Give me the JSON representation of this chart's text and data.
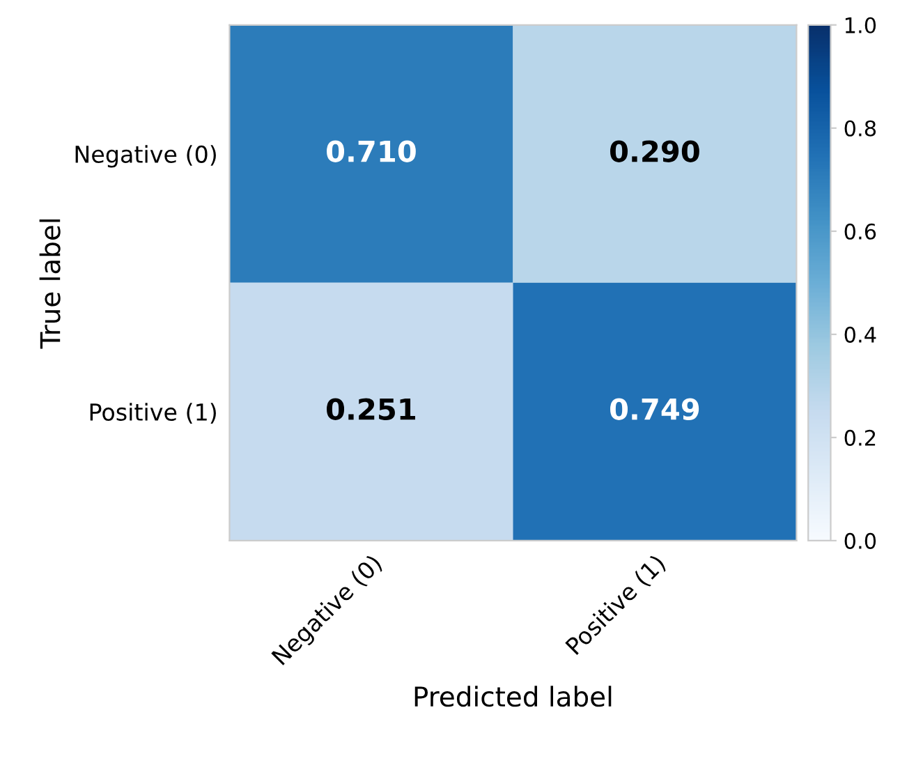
{
  "chart_data": {
    "type": "heatmap",
    "xlabel": "Predicted label",
    "ylabel": "True label",
    "categories": [
      "Negative (0)",
      "Positive (1)"
    ],
    "y_categories": [
      "Negative (0)",
      "Positive (1)"
    ],
    "cells": [
      [
        0.71,
        0.29
      ],
      [
        0.251,
        0.749
      ]
    ],
    "cell_labels": [
      [
        "0.710",
        "0.290"
      ],
      [
        "0.251",
        "0.749"
      ]
    ],
    "clim": [
      0,
      1
    ],
    "cticks": [
      {
        "value": 0,
        "label": "0.0"
      },
      {
        "value": 0.2,
        "label": "0.2"
      },
      {
        "value": 0.4,
        "label": "0.4"
      },
      {
        "value": 0.6,
        "label": "0.6"
      },
      {
        "value": 0.8,
        "label": "0.8"
      },
      {
        "value": 1,
        "label": "1.0"
      }
    ]
  }
}
